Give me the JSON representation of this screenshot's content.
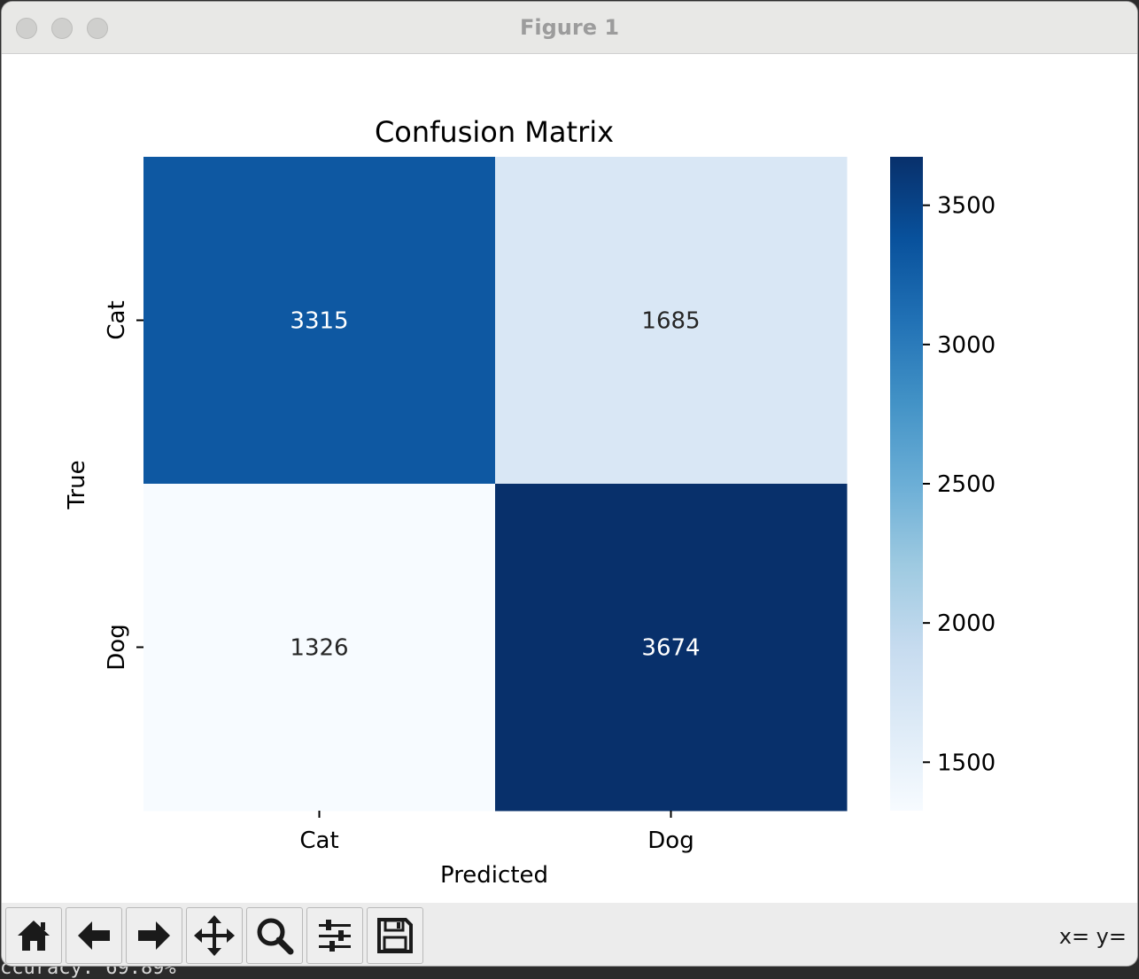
{
  "window": {
    "title": "Figure 1"
  },
  "terminal": {
    "visible_text": "ccuracy: 69.89%"
  },
  "chart_data": {
    "type": "heatmap",
    "title": "Confusion Matrix",
    "xlabel": "Predicted",
    "ylabel": "True",
    "x_categories": [
      "Cat",
      "Dog"
    ],
    "y_categories": [
      "Cat",
      "Dog"
    ],
    "values": [
      [
        3315,
        1685
      ],
      [
        1326,
        3674
      ]
    ],
    "colormap": "Blues",
    "colorbar": {
      "min": 1326,
      "max": 3674,
      "ticks": [
        1500,
        2000,
        2500,
        3000,
        3500
      ]
    },
    "annotation_colors": {
      "dark_cells": "#ffffff",
      "light_cells": "#262626"
    }
  },
  "toolbar": {
    "buttons": [
      {
        "name": "home",
        "icon": "home-icon"
      },
      {
        "name": "back",
        "icon": "arrow-left-icon"
      },
      {
        "name": "forward",
        "icon": "arrow-right-icon"
      },
      {
        "name": "pan",
        "icon": "move-icon"
      },
      {
        "name": "zoom",
        "icon": "magnifier-icon"
      },
      {
        "name": "configure-subplots",
        "icon": "sliders-icon"
      },
      {
        "name": "save",
        "icon": "floppy-disk-icon"
      }
    ],
    "coords_text": "x= y="
  }
}
